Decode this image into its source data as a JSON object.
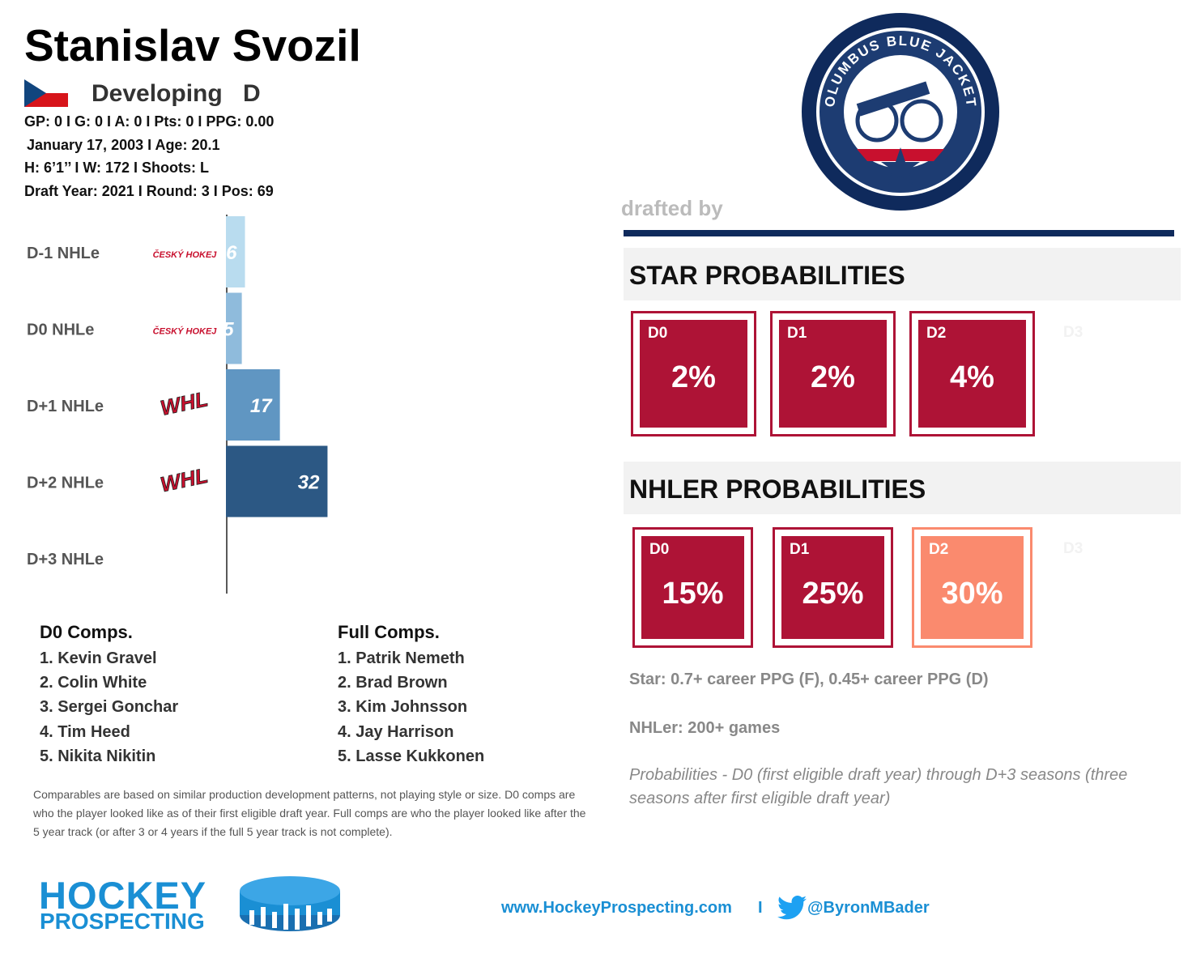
{
  "header": {
    "name": "Stanislav Svozil",
    "status": "Developing",
    "position": "D",
    "stats": "GP: 0 I G: 0 I A: 0 I Pts: 0 I PPG: 0.00",
    "birth": "January 17, 2003 I Age: 20.1",
    "size": "H: 6’1’’ I W: 172 I Shoots: L",
    "draft": "Draft Year: 2021 I Round: 3 I Pos: 69"
  },
  "team": {
    "label": "drafted by",
    "logo_text": "COLUMBUS BLUE JACKETS"
  },
  "nhle": {
    "categories": [
      "D-1 NHLe",
      "D0 NHLe",
      "D+1 NHLe",
      "D+2 NHLe",
      "D+3 NHLe"
    ],
    "leagues": [
      "ČESKÝ HOKEJ",
      "ČESKÝ HOKEJ",
      "WHL",
      "WHL",
      null
    ],
    "values": [
      6,
      5,
      17,
      32,
      null
    ],
    "colors": [
      "#b9dcef",
      "#8fbbdc",
      "#6096c2",
      "#2c5884",
      null
    ]
  },
  "star": {
    "title": "STAR PROBABILITIES",
    "labels": [
      "D0",
      "D1",
      "D2",
      "D3"
    ],
    "values": [
      2,
      2,
      4,
      null
    ],
    "value_labels": [
      "2%",
      "2%",
      "4%",
      null
    ],
    "colors": [
      "#ae1336",
      "#ae1336",
      "#ae1336",
      null
    ]
  },
  "nhler": {
    "title": "NHLER PROBABILITIES",
    "labels": [
      "D0",
      "D1",
      "D2",
      "D3"
    ],
    "values": [
      15,
      25,
      30,
      null
    ],
    "value_labels": [
      "15%",
      "25%",
      "30%",
      null
    ],
    "colors": [
      "#ae1336",
      "#ae1336",
      "#fa8a6e",
      null
    ]
  },
  "comps": {
    "d0_title": "D0 Comps.",
    "d0": [
      "1. Kevin Gravel",
      "2. Colin White",
      "3. Sergei Gonchar",
      "4. Tim Heed",
      "5. Nikita Nikitin"
    ],
    "full_title": "Full Comps.",
    "full": [
      "1. Patrik Nemeth",
      "2. Brad Brown",
      "3. Kim Johnsson",
      "4. Jay Harrison",
      "5. Lasse Kukkonen"
    ],
    "note": "Comparables are based on similar production development patterns, not playing style or size. D0 comps are who the player looked like as of their first eligible draft year. Full comps are who the player looked like after the 5 year track (or after 3 or 4 years if the full 5 year track is not complete)."
  },
  "definitions": {
    "star": "Star: 0.7+ career PPG (F), 0.45+ career PPG (D)",
    "nhler": "NHLer: 200+ games",
    "probabilities": "Probabilities - D0 (first eligible draft year) through D+3 seasons (three seasons after first eligible draft year)"
  },
  "footer": {
    "brand_top": "HOCKEY",
    "brand_bottom": "PROSPECTING",
    "site": "www.HockeyProspecting.com",
    "separator": "I",
    "twitter": "@ByronMBader"
  }
}
